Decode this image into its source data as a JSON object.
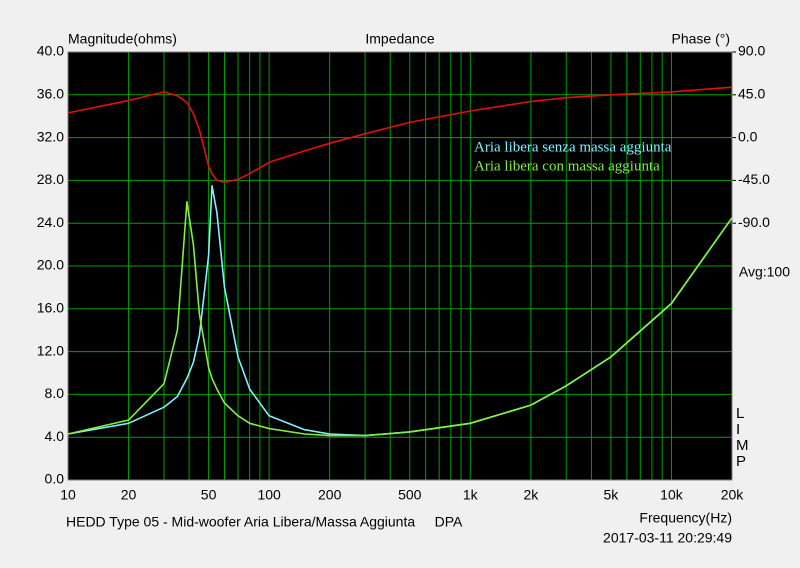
{
  "chart_data": {
    "type": "line",
    "title": "Impedance",
    "ylabel": "Magnitude(ohms)",
    "y2label": "Phase (°)",
    "xlabel": "Frequency(Hz)",
    "avg_label": "Avg:100",
    "side_label": "LIMP",
    "footer": "HEDD Type 05 - Mid-woofer Aria Libera/Massa Aggiunta     DPA",
    "timestamp": "2017-03-11 20:29:49",
    "xscale": "log",
    "grid": true,
    "legend": "upper right",
    "xlim": [
      10,
      20000
    ],
    "ylim": [
      0,
      40
    ],
    "y2lim": [
      -360,
      90
    ],
    "xticks": [
      10,
      20,
      50,
      100,
      200,
      500,
      {
        "value": 1000,
        "label": "1k"
      },
      {
        "value": 2000,
        "label": "2k"
      },
      {
        "value": 5000,
        "label": "5k"
      },
      {
        "value": 10000,
        "label": "10k"
      },
      {
        "value": 20000,
        "label": "20k"
      }
    ],
    "xgrid": [
      30,
      40,
      60,
      70,
      80,
      90,
      300,
      400,
      600,
      700,
      800,
      900,
      3000,
      4000,
      6000,
      7000,
      8000,
      9000
    ],
    "yticks": [
      {
        "value": 0,
        "label": "0.0"
      },
      {
        "value": 4,
        "label": "4.0"
      },
      {
        "value": 8,
        "label": "8.0"
      },
      {
        "value": 12,
        "label": "12.0"
      },
      {
        "value": 16,
        "label": "16.0"
      },
      {
        "value": 20,
        "label": "20.0"
      },
      {
        "value": 24,
        "label": "24.0"
      },
      {
        "value": 28,
        "label": "28.0"
      },
      {
        "value": 32,
        "label": "32.0"
      },
      {
        "value": 36,
        "label": "36.0"
      },
      {
        "value": 40,
        "label": "40.0"
      }
    ],
    "y2ticks": [
      {
        "value": 90,
        "label": "90.0"
      },
      {
        "value": 45,
        "label": "45.0"
      },
      {
        "value": 0,
        "label": "0.0"
      },
      {
        "value": -45,
        "label": "-45.0"
      },
      {
        "value": -90,
        "label": "-90.0"
      }
    ],
    "x": [
      10,
      20,
      30,
      35,
      39,
      42,
      45,
      50,
      52,
      55,
      60,
      70,
      80,
      100,
      150,
      200,
      300,
      500,
      1000,
      2000,
      3000,
      5000,
      10000,
      20000
    ],
    "series": [
      {
        "name": "Aria libera senza massa aggiunta",
        "color": "#80f0ff",
        "values": [
          4.3,
          5.3,
          6.8,
          7.8,
          9.5,
          11,
          13.5,
          21,
          27.5,
          25,
          18,
          11.5,
          8.5,
          6,
          4.7,
          4.3,
          4.15,
          4.5,
          5.3,
          7,
          8.8,
          11.5,
          16.5,
          24.5
        ]
      },
      {
        "name": "Aria libera con massa aggiunta",
        "color": "#80f040",
        "values": [
          4.3,
          5.6,
          9,
          14,
          26,
          22,
          15.5,
          10.5,
          9.5,
          8.5,
          7.2,
          6,
          5.3,
          4.8,
          4.3,
          4.15,
          4.15,
          4.5,
          5.3,
          7,
          8.8,
          11.5,
          16.5,
          24.5
        ]
      },
      {
        "color": "#e01010",
        "axis": "y2",
        "values": [
          26,
          39,
          48,
          44,
          37,
          25,
          8,
          -30,
          -38,
          -45,
          -47,
          -44,
          -38,
          -26,
          -14,
          -6,
          4,
          16,
          28,
          38,
          42,
          45,
          48,
          53
        ]
      }
    ]
  }
}
